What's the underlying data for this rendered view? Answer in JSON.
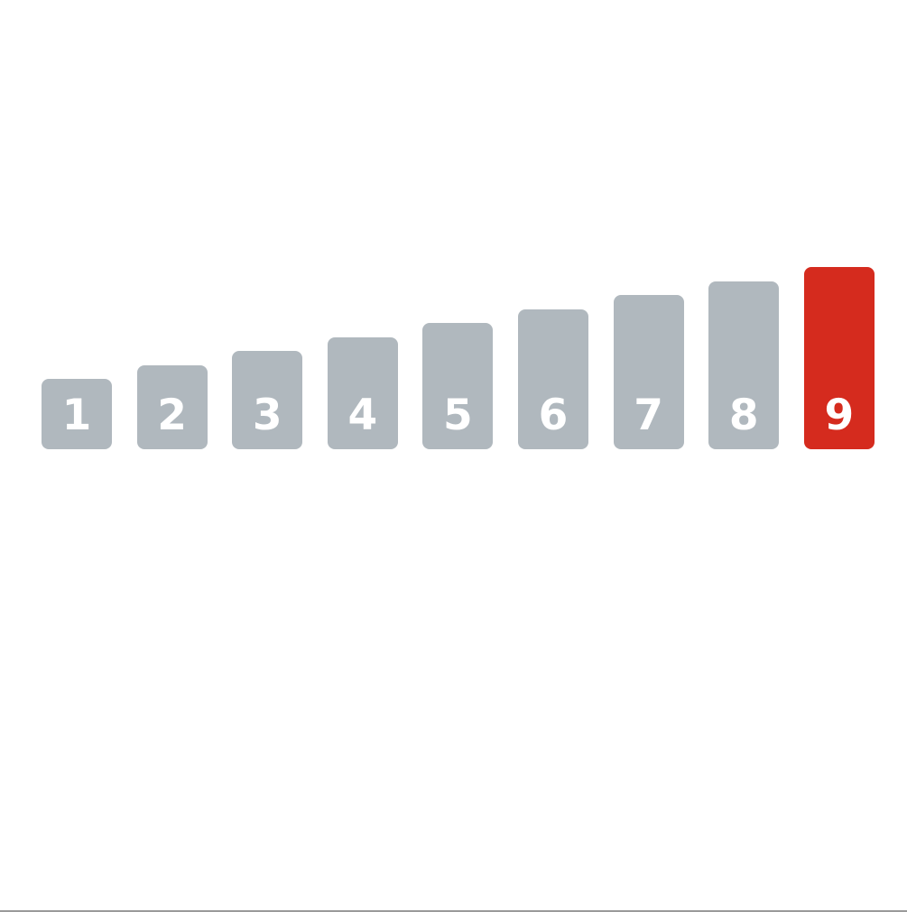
{
  "level_selector": {
    "levels": [
      {
        "label": "1",
        "selected": false
      },
      {
        "label": "2",
        "selected": false
      },
      {
        "label": "3",
        "selected": false
      },
      {
        "label": "4",
        "selected": false
      },
      {
        "label": "5",
        "selected": false
      },
      {
        "label": "6",
        "selected": false
      },
      {
        "label": "7",
        "selected": false
      },
      {
        "label": "8",
        "selected": false
      },
      {
        "label": "9",
        "selected": true
      }
    ],
    "selected_level": 9,
    "colors": {
      "inactive": "#b0b8be",
      "active": "#d52b1e",
      "label": "#ffffff"
    }
  }
}
